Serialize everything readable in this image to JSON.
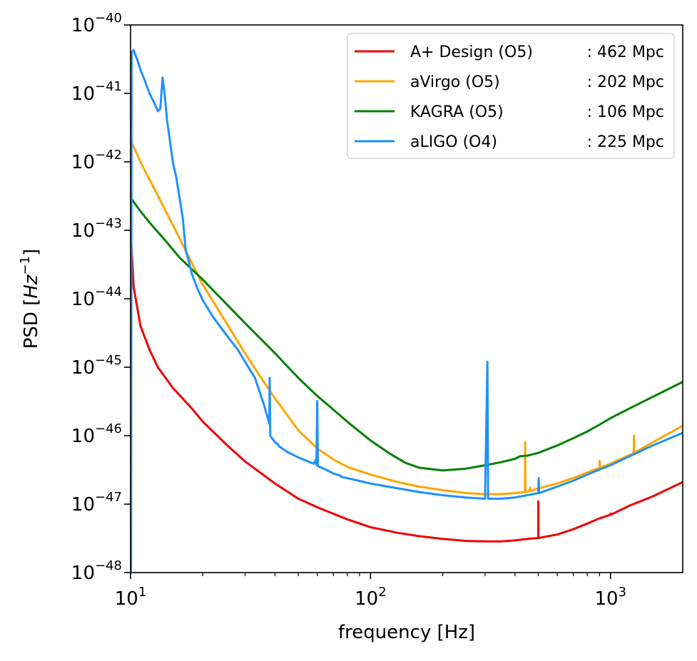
{
  "chart_data": {
    "type": "line",
    "title": "",
    "xlabel": "frequency [Hz]",
    "ylabel": {
      "prefix": "PSD [",
      "var": "Hz",
      "exp": "−1",
      "suffix": "]"
    },
    "xscale": "log",
    "yscale": "log",
    "xlim": [
      10,
      2000
    ],
    "ylim": [
      1e-48,
      1e-40
    ],
    "legend_position": "top-right",
    "x_ticks": [
      {
        "value": 10,
        "base": "10",
        "exp": "1"
      },
      {
        "value": 100,
        "base": "10",
        "exp": "2"
      },
      {
        "value": 1000,
        "base": "10",
        "exp": "3"
      }
    ],
    "y_ticks": [
      {
        "value": 1e-48,
        "base": "10",
        "exp": "−48"
      },
      {
        "value": 1e-47,
        "base": "10",
        "exp": "−47"
      },
      {
        "value": 1e-46,
        "base": "10",
        "exp": "−46"
      },
      {
        "value": 1e-45,
        "base": "10",
        "exp": "−45"
      },
      {
        "value": 1e-44,
        "base": "10",
        "exp": "−44"
      },
      {
        "value": 1e-43,
        "base": "10",
        "exp": "−43"
      },
      {
        "value": 1e-42,
        "base": "10",
        "exp": "−42"
      },
      {
        "value": 1e-41,
        "base": "10",
        "exp": "−41"
      },
      {
        "value": 1e-40,
        "base": "10",
        "exp": "−40"
      }
    ],
    "series": [
      {
        "name": "A+ Design (O5)",
        "range": ": 462 Mpc",
        "color": "#ee0000",
        "points": [
          [
            10,
            1e-43
          ],
          [
            10.3,
            1.5e-44
          ],
          [
            11,
            4e-45
          ],
          [
            12,
            1.8e-45
          ],
          [
            13,
            1e-45
          ],
          [
            15,
            5e-46
          ],
          [
            18,
            2.5e-46
          ],
          [
            20,
            1.6e-46
          ],
          [
            25,
            7.5e-47
          ],
          [
            30,
            4.2e-47
          ],
          [
            40,
            2e-47
          ],
          [
            50,
            1.2e-47
          ],
          [
            60,
            9e-48
          ],
          [
            80,
            6e-48
          ],
          [
            100,
            4.6e-48
          ],
          [
            130,
            3.8e-48
          ],
          [
            160,
            3.4e-48
          ],
          [
            200,
            3.1e-48
          ],
          [
            250,
            2.9e-48
          ],
          [
            300,
            2.85e-48
          ],
          [
            350,
            2.85e-48
          ],
          [
            400,
            2.95e-48
          ],
          [
            450,
            3.1e-48
          ],
          [
            500,
            3.2e-48
          ],
          [
            500.5,
            1.1e-47
          ],
          [
            501,
            3.2e-48
          ],
          [
            600,
            3.6e-48
          ],
          [
            700,
            4.3e-48
          ],
          [
            800,
            5.2e-48
          ],
          [
            900,
            6.2e-48
          ],
          [
            1000,
            7e-48
          ],
          [
            1002,
            7.3e-48
          ],
          [
            1004,
            7e-48
          ],
          [
            1200,
            9.5e-48
          ],
          [
            1500,
            1.3e-47
          ],
          [
            2000,
            2.1e-47
          ]
        ]
      },
      {
        "name": "aVirgo (O5)",
        "range": ": 202 Mpc",
        "color": "#ffa500",
        "points": [
          [
            10,
            2.1e-42
          ],
          [
            11,
            1e-42
          ],
          [
            12,
            5.5e-43
          ],
          [
            13,
            3.2e-43
          ],
          [
            15,
            1.2e-43
          ],
          [
            17,
            5e-44
          ],
          [
            20,
            1.6e-44
          ],
          [
            25,
            4.5e-45
          ],
          [
            30,
            1.6e-45
          ],
          [
            35,
            7e-46
          ],
          [
            40,
            3.5e-46
          ],
          [
            50,
            1.2e-46
          ],
          [
            60,
            6.5e-47
          ],
          [
            70,
            4.5e-47
          ],
          [
            80,
            3.5e-47
          ],
          [
            100,
            2.7e-47
          ],
          [
            130,
            2.1e-47
          ],
          [
            160,
            1.8e-47
          ],
          [
            200,
            1.6e-47
          ],
          [
            250,
            1.45e-47
          ],
          [
            300,
            1.4e-47
          ],
          [
            350,
            1.4e-47
          ],
          [
            400,
            1.45e-47
          ],
          [
            440,
            1.5e-47
          ],
          [
            441,
            8e-47
          ],
          [
            442,
            1.5e-47
          ],
          [
            460,
            1.55e-47
          ],
          [
            462,
            1.75e-47
          ],
          [
            464,
            1.55e-47
          ],
          [
            500,
            1.7e-47
          ],
          [
            600,
            2e-47
          ],
          [
            700,
            2.4e-47
          ],
          [
            800,
            2.9e-47
          ],
          [
            900,
            3.4e-47
          ],
          [
            902,
            4.3e-47
          ],
          [
            904,
            3.4e-47
          ],
          [
            1000,
            3.9e-47
          ],
          [
            1200,
            5.2e-47
          ],
          [
            1250,
            5.6e-47
          ],
          [
            1252,
            1e-46
          ],
          [
            1254,
            5.6e-47
          ],
          [
            1500,
            8e-47
          ],
          [
            2000,
            1.4e-46
          ]
        ]
      },
      {
        "name": "KAGRA (O5)",
        "range": ": 106 Mpc",
        "color": "#008000",
        "points": [
          [
            10,
            3e-43
          ],
          [
            11,
            1.9e-43
          ],
          [
            12,
            1.3e-43
          ],
          [
            14,
            7e-44
          ],
          [
            16,
            4e-44
          ],
          [
            20,
            1.9e-44
          ],
          [
            25,
            8.5e-45
          ],
          [
            30,
            4.4e-45
          ],
          [
            40,
            1.6e-45
          ],
          [
            50,
            7e-46
          ],
          [
            60,
            3.8e-46
          ],
          [
            70,
            2.4e-46
          ],
          [
            80,
            1.6e-46
          ],
          [
            100,
            8.5e-47
          ],
          [
            120,
            5.5e-47
          ],
          [
            140,
            4e-47
          ],
          [
            160,
            3.4e-47
          ],
          [
            200,
            3.1e-47
          ],
          [
            250,
            3.3e-47
          ],
          [
            300,
            3.7e-47
          ],
          [
            350,
            4.1e-47
          ],
          [
            400,
            4.6e-47
          ],
          [
            420,
            5e-47
          ],
          [
            450,
            5.1e-47
          ],
          [
            500,
            5.6e-47
          ],
          [
            600,
            7.2e-47
          ],
          [
            700,
            9.2e-47
          ],
          [
            800,
            1.15e-46
          ],
          [
            900,
            1.45e-46
          ],
          [
            1000,
            1.8e-46
          ],
          [
            1200,
            2.5e-46
          ],
          [
            1500,
            3.7e-46
          ],
          [
            2000,
            6.1e-46
          ]
        ]
      },
      {
        "name": "aLIGO (O4)",
        "range": ": 225 Mpc",
        "color": "#1e90ff",
        "points": [
          [
            10.05,
            1e-48
          ],
          [
            10.1,
            4e-41
          ],
          [
            10.3,
            4.3e-41
          ],
          [
            10.7,
            3e-41
          ],
          [
            11,
            2.2e-41
          ],
          [
            11.5,
            1.5e-41
          ],
          [
            12,
            1e-41
          ],
          [
            12.5,
            7.5e-42
          ],
          [
            13,
            5.5e-42
          ],
          [
            13.3,
            6e-42
          ],
          [
            13.6,
            1.7e-41
          ],
          [
            13.9,
            9e-42
          ],
          [
            14.2,
            4e-42
          ],
          [
            14.6,
            2e-42
          ],
          [
            15,
            1e-42
          ],
          [
            15.5,
            6e-43
          ],
          [
            16,
            3e-43
          ],
          [
            16.5,
            1.5e-43
          ],
          [
            17,
            5e-44
          ],
          [
            17.5,
            3.5e-44
          ],
          [
            18,
            2.3e-44
          ],
          [
            19,
            1.4e-44
          ],
          [
            20,
            9.5e-45
          ],
          [
            22,
            5.5e-45
          ],
          [
            25,
            3e-45
          ],
          [
            28,
            1.8e-45
          ],
          [
            30,
            1.2e-45
          ],
          [
            33,
            7e-46
          ],
          [
            36,
            2.8e-46
          ],
          [
            37.9,
            1.5e-46
          ],
          [
            38,
            7e-46
          ],
          [
            38.2,
            1e-46
          ],
          [
            40,
            8e-47
          ],
          [
            41,
            7.5e-47
          ],
          [
            41.2,
            7.5e-47
          ],
          [
            41.5,
            7e-47
          ],
          [
            45,
            5.8e-47
          ],
          [
            50,
            4.8e-47
          ],
          [
            55,
            4.2e-47
          ],
          [
            58,
            3.9e-47
          ],
          [
            59,
            4.4e-47
          ],
          [
            59.5,
            3.8e-47
          ],
          [
            60,
            3.2e-46
          ],
          [
            60.3,
            3.6e-47
          ],
          [
            65,
            3.2e-47
          ],
          [
            70,
            2.8e-47
          ],
          [
            75,
            2.6e-47
          ],
          [
            75.5,
            2.5e-47
          ],
          [
            80,
            2.4e-47
          ],
          [
            100,
            2e-47
          ],
          [
            130,
            1.7e-47
          ],
          [
            160,
            1.5e-47
          ],
          [
            200,
            1.35e-47
          ],
          [
            250,
            1.25e-47
          ],
          [
            300,
            1.2e-47
          ],
          [
            307,
            1.2e-45
          ],
          [
            309,
            1.2e-47
          ],
          [
            350,
            1.2e-47
          ],
          [
            400,
            1.25e-47
          ],
          [
            450,
            1.35e-47
          ],
          [
            500,
            1.45e-47
          ],
          [
            502,
            2.4e-47
          ],
          [
            504,
            1.45e-47
          ],
          [
            600,
            1.8e-47
          ],
          [
            700,
            2.2e-47
          ],
          [
            800,
            2.7e-47
          ],
          [
            900,
            3.2e-47
          ],
          [
            1000,
            3.7e-47
          ],
          [
            1200,
            5e-47
          ],
          [
            1500,
            7.2e-47
          ],
          [
            2000,
            1.1e-46
          ]
        ]
      }
    ]
  }
}
